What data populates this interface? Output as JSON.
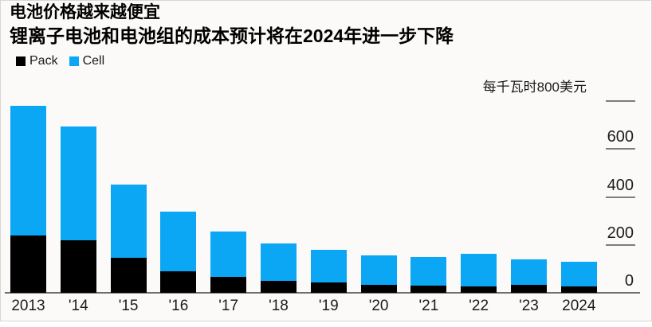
{
  "page": {
    "title": "电池价格越来越便宜",
    "subtitle": "锂离子电池和电池组的成本预计将在2024年进一步下降"
  },
  "chart_data": {
    "type": "bar",
    "stacked": true,
    "title": "电池价格越来越便宜",
    "subtitle": "锂离子电池和电池组的成本预计将在2024年进一步下降",
    "unit_label": "每千瓦时800美元",
    "categories": [
      "2013",
      "'14",
      "'15",
      "'16",
      "'17",
      "'18",
      "'19",
      "'20",
      "'21",
      "'22",
      "'23",
      "2024"
    ],
    "series": [
      {
        "name": "Pack",
        "color": "#000000",
        "values": [
          240,
          220,
          145,
          90,
          68,
          50,
          42,
          33,
          31,
          26,
          32,
          25
        ]
      },
      {
        "name": "Cell",
        "color": "#0ba6f4",
        "values": [
          540,
          475,
          305,
          250,
          187,
          157,
          138,
          124,
          117,
          137,
          107,
          105
        ]
      }
    ],
    "totals": [
      780,
      695,
      450,
      340,
      255,
      207,
      180,
      157,
      148,
      163,
      139,
      130
    ],
    "ylim": [
      0,
      800
    ],
    "yticks": [
      0,
      200,
      400,
      600,
      800
    ],
    "ytick_labels_shown": [
      "0",
      "200",
      "400",
      "600"
    ],
    "axis_side": "right",
    "legend_position": "top-left",
    "grid": false
  },
  "colors": {
    "pack": "#000000",
    "cell": "#0ba6f4",
    "axis_line": "#6f6f6f",
    "tick_mark": "#7d7d7d",
    "text": "#1b1b1b",
    "card_background": "#fbfaf8",
    "card_border": "#d8d6d2"
  }
}
